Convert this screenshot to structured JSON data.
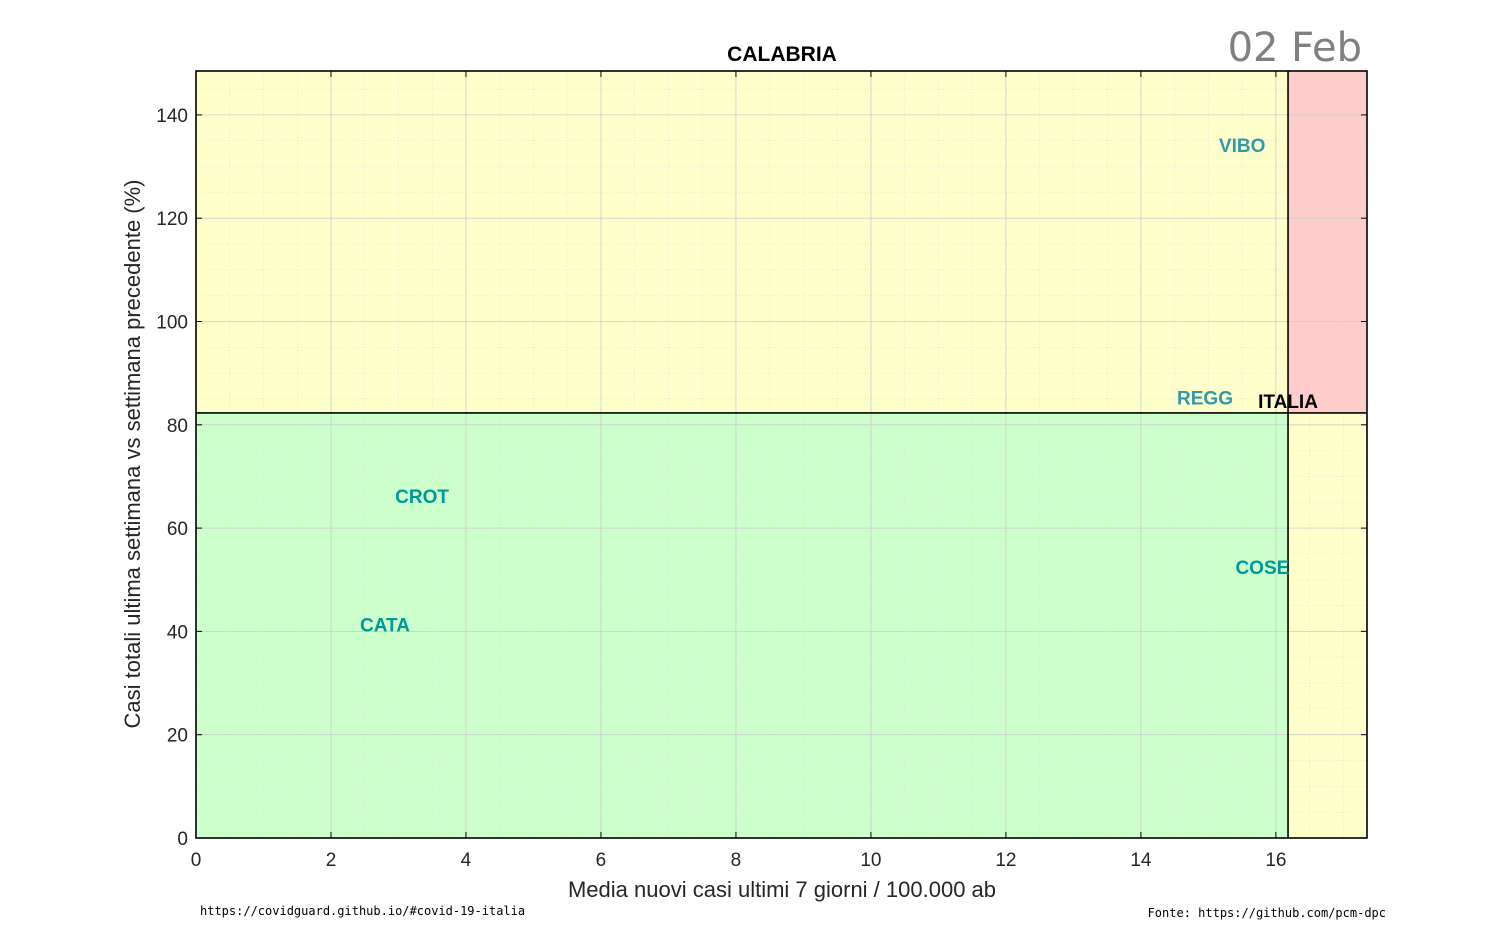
{
  "header": {
    "date": "02 Feb"
  },
  "footer": {
    "left": "https://covidguard.github.io/#covid-19-italia",
    "right": "Fonte: https://github.com/pcm-dpc"
  },
  "colors": {
    "green_zone": "#ccffcc",
    "yellow_zone": "#ffffcc",
    "red_zone": "#ffcccc",
    "label_teal": "#009999",
    "label_blue": "#3399aa"
  },
  "chart_data": {
    "type": "scatter",
    "title": "CALABRIA",
    "xlabel": "Media nuovi casi ultimi 7 giorni / 100.000 ab",
    "ylabel": "Casi totali ultima settimana vs settimana precedente (%)",
    "xlim": [
      0,
      17.35
    ],
    "ylim": [
      0,
      148.5
    ],
    "x_ticks": [
      0,
      2,
      4,
      6,
      8,
      10,
      12,
      14,
      16
    ],
    "y_ticks": [
      0,
      20,
      40,
      60,
      80,
      100,
      120,
      140
    ],
    "x_tick_labels": [
      "0",
      "2",
      "4",
      "6",
      "8",
      "10",
      "12",
      "14",
      "16"
    ],
    "y_tick_labels": [
      "0",
      "20",
      "40",
      "60",
      "80",
      "100",
      "120",
      "140"
    ],
    "grid": true,
    "reference": {
      "label": "ITALIA",
      "x": 16.18,
      "y": 82.3
    },
    "points": [
      {
        "label": "VIBO",
        "x": 15.5,
        "y": 134.2,
        "color": "#3399aa"
      },
      {
        "label": "REGG",
        "x": 14.95,
        "y": 85.3,
        "color": "#3399aa"
      },
      {
        "label": "CROT",
        "x": 3.35,
        "y": 66.2,
        "color": "#009999"
      },
      {
        "label": "COSE",
        "x": 15.8,
        "y": 52.5,
        "color": "#009999"
      },
      {
        "label": "CATA",
        "x": 2.8,
        "y": 41.3,
        "color": "#009999"
      }
    ]
  }
}
